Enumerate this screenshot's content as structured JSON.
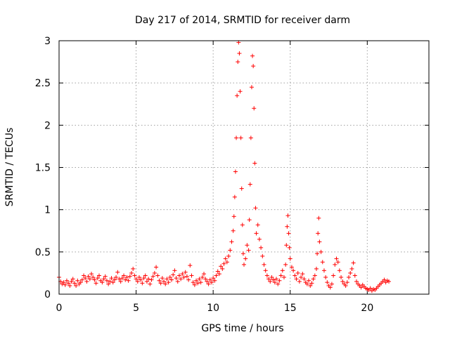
{
  "chart_data": {
    "type": "scatter",
    "title": "Day 217 of 2014, SRMTID for receiver darm",
    "xlabel": "GPS time / hours",
    "ylabel": "SRMTID / TECUs",
    "xlim": [
      0,
      24
    ],
    "ylim": [
      0,
      3
    ],
    "xticks": [
      0,
      5,
      10,
      15,
      20
    ],
    "yticks": [
      0,
      0.5,
      1,
      1.5,
      2,
      2.5,
      3
    ],
    "xtick_labels": [
      "0",
      "5",
      "10",
      "15",
      "20"
    ],
    "ytick_labels": [
      "0",
      "0.5",
      "1",
      "1.5",
      "2",
      "2.5",
      "3"
    ],
    "grid": true,
    "marker": "+",
    "series": [
      {
        "name": "SRMTID",
        "color": "#ff0000",
        "points": [
          [
            0.0,
            0.2
          ],
          [
            0.1,
            0.15
          ],
          [
            0.2,
            0.12
          ],
          [
            0.3,
            0.14
          ],
          [
            0.4,
            0.11
          ],
          [
            0.5,
            0.16
          ],
          [
            0.6,
            0.13
          ],
          [
            0.7,
            0.1
          ],
          [
            0.8,
            0.15
          ],
          [
            0.9,
            0.18
          ],
          [
            1.0,
            0.13
          ],
          [
            1.1,
            0.1
          ],
          [
            1.2,
            0.16
          ],
          [
            1.3,
            0.12
          ],
          [
            1.4,
            0.14
          ],
          [
            1.5,
            0.17
          ],
          [
            1.6,
            0.22
          ],
          [
            1.7,
            0.19
          ],
          [
            1.8,
            0.15
          ],
          [
            1.9,
            0.21
          ],
          [
            2.0,
            0.18
          ],
          [
            2.1,
            0.24
          ],
          [
            2.2,
            0.2
          ],
          [
            2.3,
            0.17
          ],
          [
            2.4,
            0.13
          ],
          [
            2.5,
            0.19
          ],
          [
            2.6,
            0.22
          ],
          [
            2.7,
            0.16
          ],
          [
            2.8,
            0.14
          ],
          [
            2.9,
            0.18
          ],
          [
            3.0,
            0.21
          ],
          [
            3.1,
            0.16
          ],
          [
            3.2,
            0.12
          ],
          [
            3.3,
            0.15
          ],
          [
            3.4,
            0.19
          ],
          [
            3.5,
            0.14
          ],
          [
            3.6,
            0.17
          ],
          [
            3.7,
            0.2
          ],
          [
            3.8,
            0.26
          ],
          [
            3.9,
            0.18
          ],
          [
            4.0,
            0.15
          ],
          [
            4.1,
            0.19
          ],
          [
            4.2,
            0.22
          ],
          [
            4.3,
            0.17
          ],
          [
            4.4,
            0.2
          ],
          [
            4.5,
            0.16
          ],
          [
            4.6,
            0.21
          ],
          [
            4.7,
            0.25
          ],
          [
            4.8,
            0.3
          ],
          [
            4.9,
            0.22
          ],
          [
            5.0,
            0.18
          ],
          [
            5.1,
            0.15
          ],
          [
            5.2,
            0.2
          ],
          [
            5.3,
            0.17
          ],
          [
            5.4,
            0.13
          ],
          [
            5.5,
            0.19
          ],
          [
            5.6,
            0.22
          ],
          [
            5.7,
            0.15
          ],
          [
            5.8,
            0.18
          ],
          [
            5.9,
            0.12
          ],
          [
            6.0,
            0.17
          ],
          [
            6.1,
            0.21
          ],
          [
            6.2,
            0.25
          ],
          [
            6.3,
            0.32
          ],
          [
            6.4,
            0.22
          ],
          [
            6.5,
            0.16
          ],
          [
            6.6,
            0.13
          ],
          [
            6.7,
            0.19
          ],
          [
            6.8,
            0.15
          ],
          [
            6.9,
            0.12
          ],
          [
            7.0,
            0.18
          ],
          [
            7.1,
            0.14
          ],
          [
            7.2,
            0.2
          ],
          [
            7.3,
            0.17
          ],
          [
            7.4,
            0.23
          ],
          [
            7.5,
            0.28
          ],
          [
            7.6,
            0.19
          ],
          [
            7.7,
            0.15
          ],
          [
            7.8,
            0.22
          ],
          [
            7.9,
            0.18
          ],
          [
            8.0,
            0.24
          ],
          [
            8.1,
            0.2
          ],
          [
            8.2,
            0.26
          ],
          [
            8.3,
            0.21
          ],
          [
            8.4,
            0.17
          ],
          [
            8.5,
            0.34
          ],
          [
            8.6,
            0.22
          ],
          [
            8.7,
            0.14
          ],
          [
            8.8,
            0.11
          ],
          [
            8.9,
            0.16
          ],
          [
            9.0,
            0.13
          ],
          [
            9.1,
            0.18
          ],
          [
            9.2,
            0.14
          ],
          [
            9.3,
            0.2
          ],
          [
            9.4,
            0.24
          ],
          [
            9.5,
            0.18
          ],
          [
            9.6,
            0.15
          ],
          [
            9.7,
            0.12
          ],
          [
            9.8,
            0.17
          ],
          [
            9.9,
            0.14
          ],
          [
            10.0,
            0.19
          ],
          [
            10.1,
            0.16
          ],
          [
            10.2,
            0.22
          ],
          [
            10.3,
            0.27
          ],
          [
            10.4,
            0.24
          ],
          [
            10.5,
            0.33
          ],
          [
            10.6,
            0.3
          ],
          [
            10.7,
            0.36
          ],
          [
            10.8,
            0.42
          ],
          [
            10.9,
            0.38
          ],
          [
            11.0,
            0.45
          ],
          [
            11.1,
            0.52
          ],
          [
            11.2,
            0.62
          ],
          [
            11.3,
            0.75
          ],
          [
            11.35,
            0.92
          ],
          [
            11.4,
            1.15
          ],
          [
            11.45,
            1.45
          ],
          [
            11.5,
            1.85
          ],
          [
            11.55,
            2.35
          ],
          [
            11.6,
            2.75
          ],
          [
            11.65,
            2.98
          ],
          [
            11.7,
            2.85
          ],
          [
            11.75,
            2.4
          ],
          [
            11.8,
            1.85
          ],
          [
            11.85,
            1.25
          ],
          [
            11.9,
            0.82
          ],
          [
            11.95,
            0.48
          ],
          [
            12.0,
            0.35
          ],
          [
            12.1,
            0.42
          ],
          [
            12.2,
            0.58
          ],
          [
            12.3,
            0.52
          ],
          [
            12.35,
            0.88
          ],
          [
            12.4,
            1.3
          ],
          [
            12.45,
            1.85
          ],
          [
            12.5,
            2.45
          ],
          [
            12.55,
            2.82
          ],
          [
            12.6,
            2.7
          ],
          [
            12.65,
            2.2
          ],
          [
            12.7,
            1.55
          ],
          [
            12.75,
            1.02
          ],
          [
            12.8,
            0.72
          ],
          [
            12.9,
            0.82
          ],
          [
            13.0,
            0.65
          ],
          [
            13.1,
            0.55
          ],
          [
            13.2,
            0.45
          ],
          [
            13.3,
            0.35
          ],
          [
            13.4,
            0.28
          ],
          [
            13.5,
            0.22
          ],
          [
            13.6,
            0.18
          ],
          [
            13.7,
            0.15
          ],
          [
            13.8,
            0.2
          ],
          [
            13.9,
            0.17
          ],
          [
            14.0,
            0.14
          ],
          [
            14.1,
            0.18
          ],
          [
            14.2,
            0.12
          ],
          [
            14.3,
            0.16
          ],
          [
            14.4,
            0.22
          ],
          [
            14.5,
            0.28
          ],
          [
            14.6,
            0.2
          ],
          [
            14.7,
            0.35
          ],
          [
            14.75,
            0.58
          ],
          [
            14.8,
            0.8
          ],
          [
            14.85,
            0.93
          ],
          [
            14.9,
            0.72
          ],
          [
            14.95,
            0.55
          ],
          [
            15.0,
            0.42
          ],
          [
            15.1,
            0.32
          ],
          [
            15.2,
            0.28
          ],
          [
            15.3,
            0.22
          ],
          [
            15.4,
            0.18
          ],
          [
            15.5,
            0.25
          ],
          [
            15.6,
            0.15
          ],
          [
            15.7,
            0.2
          ],
          [
            15.8,
            0.24
          ],
          [
            15.9,
            0.18
          ],
          [
            16.0,
            0.14
          ],
          [
            16.1,
            0.12
          ],
          [
            16.2,
            0.16
          ],
          [
            16.3,
            0.1
          ],
          [
            16.4,
            0.13
          ],
          [
            16.5,
            0.18
          ],
          [
            16.6,
            0.22
          ],
          [
            16.7,
            0.3
          ],
          [
            16.75,
            0.48
          ],
          [
            16.8,
            0.72
          ],
          [
            16.85,
            0.9
          ],
          [
            16.9,
            0.62
          ],
          [
            17.0,
            0.5
          ],
          [
            17.1,
            0.38
          ],
          [
            17.2,
            0.28
          ],
          [
            17.3,
            0.2
          ],
          [
            17.4,
            0.14
          ],
          [
            17.5,
            0.1
          ],
          [
            17.6,
            0.08
          ],
          [
            17.7,
            0.12
          ],
          [
            17.8,
            0.22
          ],
          [
            17.9,
            0.35
          ],
          [
            18.0,
            0.42
          ],
          [
            18.1,
            0.38
          ],
          [
            18.2,
            0.28
          ],
          [
            18.3,
            0.2
          ],
          [
            18.4,
            0.15
          ],
          [
            18.5,
            0.12
          ],
          [
            18.6,
            0.1
          ],
          [
            18.7,
            0.14
          ],
          [
            18.8,
            0.2
          ],
          [
            18.9,
            0.25
          ],
          [
            19.0,
            0.3
          ],
          [
            19.1,
            0.37
          ],
          [
            19.2,
            0.22
          ],
          [
            19.3,
            0.15
          ],
          [
            19.4,
            0.12
          ],
          [
            19.5,
            0.1
          ],
          [
            19.6,
            0.08
          ],
          [
            19.7,
            0.11
          ],
          [
            19.8,
            0.09
          ],
          [
            19.9,
            0.07
          ],
          [
            20.0,
            0.06
          ],
          [
            20.1,
            0.05
          ],
          [
            20.2,
            0.07
          ],
          [
            20.3,
            0.04
          ],
          [
            20.4,
            0.06
          ],
          [
            20.5,
            0.05
          ],
          [
            20.6,
            0.07
          ],
          [
            20.7,
            0.09
          ],
          [
            20.8,
            0.11
          ],
          [
            20.9,
            0.13
          ],
          [
            21.0,
            0.15
          ],
          [
            21.1,
            0.17
          ],
          [
            21.2,
            0.14
          ],
          [
            21.3,
            0.16
          ],
          [
            21.4,
            0.15
          ]
        ]
      }
    ]
  }
}
